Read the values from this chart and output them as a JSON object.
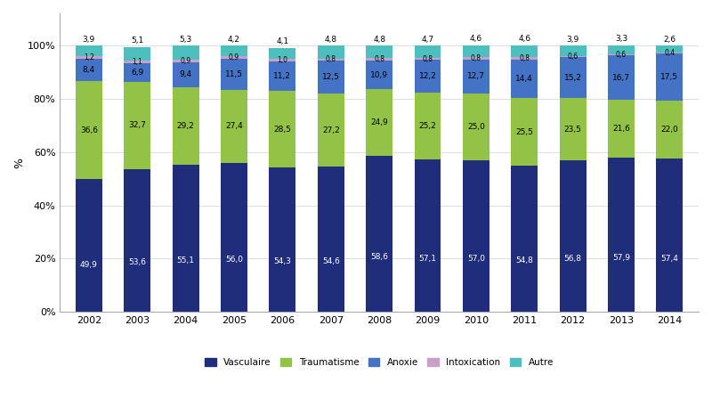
{
  "years": [
    "2002",
    "2003",
    "2004",
    "2005",
    "2006",
    "2007",
    "2008",
    "2009",
    "2010",
    "2011",
    "2012",
    "2013",
    "2014"
  ],
  "vasculaire": [
    49.9,
    53.6,
    55.1,
    56.0,
    54.3,
    54.6,
    58.6,
    57.1,
    57.0,
    54.8,
    56.8,
    57.9,
    57.4
  ],
  "traumatisme": [
    36.6,
    32.7,
    29.2,
    27.4,
    28.5,
    27.2,
    24.9,
    25.2,
    25.0,
    25.5,
    23.5,
    21.6,
    22.0
  ],
  "anoxie": [
    8.4,
    6.9,
    9.4,
    11.5,
    11.2,
    12.5,
    10.9,
    12.2,
    12.7,
    14.4,
    15.2,
    16.7,
    17.5
  ],
  "intoxication": [
    1.2,
    1.1,
    0.9,
    0.9,
    1.0,
    0.8,
    0.8,
    0.8,
    0.8,
    0.8,
    0.6,
    0.6,
    0.4
  ],
  "autre": [
    3.9,
    5.1,
    5.3,
    4.2,
    4.1,
    4.8,
    4.8,
    4.7,
    4.6,
    4.6,
    3.9,
    3.3,
    2.6
  ],
  "colors": {
    "vasculaire": "#1F2D7B",
    "traumatisme": "#92C346",
    "anoxie": "#4472C4",
    "intoxication": "#C8A0C8",
    "autre": "#4DBFBF"
  },
  "ylabel": "%",
  "yticks": [
    0,
    20,
    40,
    60,
    80,
    100
  ],
  "ytick_labels": [
    "0%",
    "20%",
    "40%",
    "60%",
    "80%",
    "100%"
  ],
  "legend_labels": [
    "Vasculaire",
    "Traumatisme",
    "Anoxie",
    "Intoxication",
    "Autre"
  ],
  "bar_width": 0.55
}
